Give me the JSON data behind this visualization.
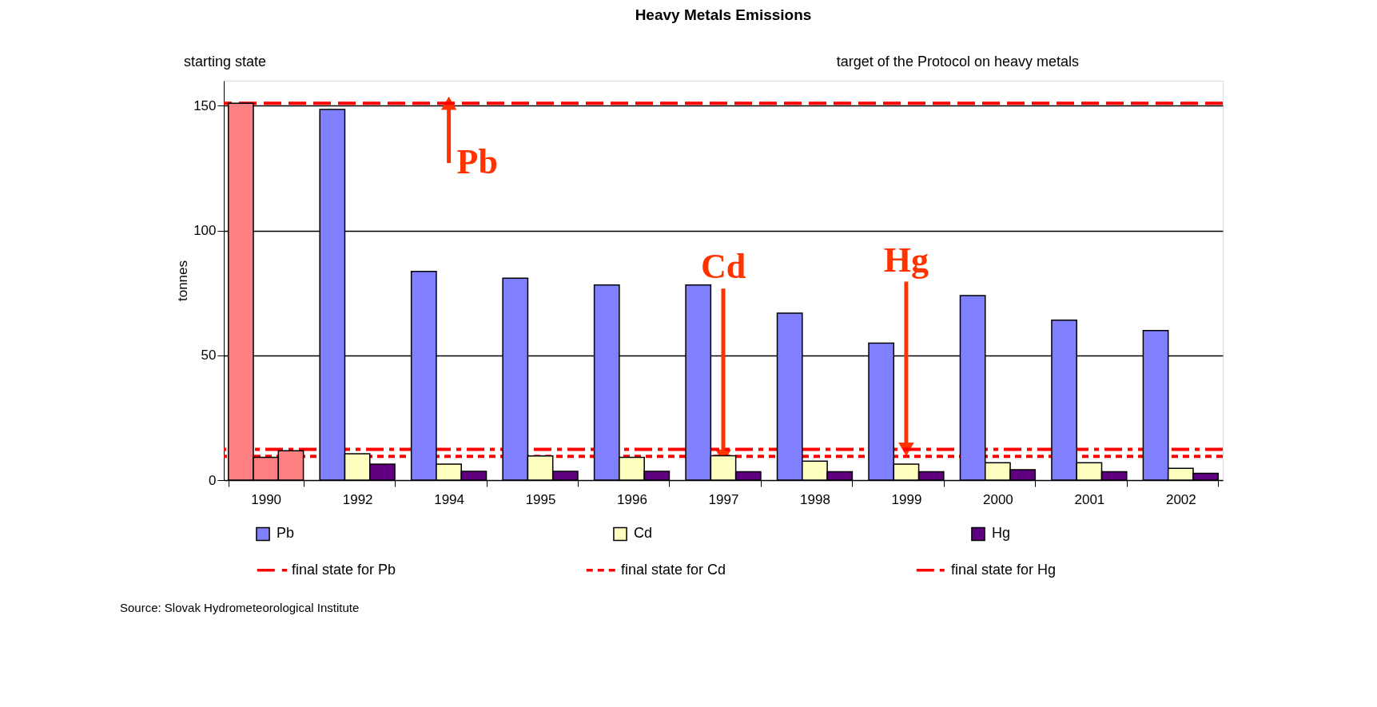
{
  "chart_data": {
    "type": "bar",
    "title": "Heavy Metals Emissions",
    "ylabel": "tonnes",
    "categories": [
      "1990",
      "1992",
      "1994",
      "1995",
      "1996",
      "1997",
      "1998",
      "1999",
      "2000",
      "2001",
      "2002"
    ],
    "series": [
      {
        "name": "Pb",
        "color": "#8080ff",
        "colors": [
          "#ff8080",
          "#8080ff",
          "#8080ff",
          "#8080ff",
          "#8080ff",
          "#8080ff",
          "#8080ff",
          "#8080ff",
          "#8080ff",
          "#8080ff",
          "#8080ff"
        ],
        "values": [
          151,
          148.5,
          83.6,
          80.9,
          78.2,
          78.2,
          66.9,
          54.9,
          73.9,
          64.1,
          59.9
        ]
      },
      {
        "name": "Cd",
        "color": "#ffffc0",
        "colors": [
          "#ff8080",
          "#ffffc0",
          "#ffffc0",
          "#ffffc0",
          "#ffffc0",
          "#ffffc0",
          "#ffffc0",
          "#ffffc0",
          "#ffffc0",
          "#ffffc0",
          "#ffffc0"
        ],
        "values": [
          9.1,
          10.6,
          6.4,
          9.7,
          9.1,
          9.8,
          7.6,
          6.4,
          7.0,
          7.0,
          4.7
        ]
      },
      {
        "name": "Hg",
        "color": "#600080",
        "colors": [
          "#ff8080",
          "#600080",
          "#600080",
          "#600080",
          "#600080",
          "#600080",
          "#600080",
          "#600080",
          "#600080",
          "#600080",
          "#600080"
        ],
        "values": [
          11.8,
          6.4,
          3.5,
          3.5,
          3.5,
          3.4,
          3.4,
          3.4,
          4.2,
          3.4,
          2.7
        ]
      }
    ],
    "ylim": [
      0,
      160
    ],
    "yticks": [
      0,
      50,
      100,
      150
    ],
    "grid": "y",
    "legend": "bottom",
    "ref_lines": [
      {
        "axis": "y",
        "value": 151,
        "label": "final state for Pb",
        "color": "#ff0000",
        "line_style": "dashed"
      },
      {
        "axis": "y",
        "value": 9.5,
        "label": "final state for Cd",
        "color": "#ff0000",
        "line_style": "dotted"
      },
      {
        "axis": "y",
        "value": 12.3,
        "label": "final state for Hg",
        "color": "#ff0000",
        "line_style": "dashdot"
      }
    ],
    "annotations": [
      "starting state",
      "target of the Protocol on heavy metals",
      {
        "text": "Pb",
        "x": "1994",
        "y": 151
      },
      {
        "text": "Cd",
        "x": "1997",
        "y": 9.5
      },
      {
        "text": "Hg",
        "x": "1999",
        "y": 12.3
      },
      "Source: Slovak Hydrometeorological Institute"
    ]
  }
}
